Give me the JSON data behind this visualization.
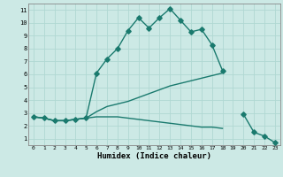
{
  "xlabel": "Humidex (Indice chaleur)",
  "xlim": [
    -0.5,
    23.5
  ],
  "ylim": [
    0.5,
    11.5
  ],
  "xticks": [
    0,
    1,
    2,
    3,
    4,
    5,
    6,
    7,
    8,
    9,
    10,
    11,
    12,
    13,
    14,
    15,
    16,
    17,
    18,
    19,
    20,
    21,
    22,
    23
  ],
  "yticks": [
    1,
    2,
    3,
    4,
    5,
    6,
    7,
    8,
    9,
    10,
    11
  ],
  "bg_color": "#cce9e5",
  "line_color": "#1a7a6e",
  "grid_color": "#b0d8d2",
  "lines": [
    {
      "x": [
        0,
        1,
        2,
        3,
        4,
        5,
        6,
        7,
        8,
        9,
        10,
        11,
        12,
        13,
        14,
        15,
        16,
        17,
        18,
        19,
        20,
        21,
        22,
        23
      ],
      "y": [
        2.7,
        2.6,
        2.4,
        2.4,
        2.5,
        2.6,
        6.1,
        7.2,
        8.0,
        9.4,
        10.4,
        9.6,
        10.4,
        11.1,
        10.2,
        9.3,
        9.5,
        8.3,
        6.3,
        null,
        2.9,
        1.5,
        1.2,
        0.7
      ],
      "marker": true
    },
    {
      "x": [
        0,
        1,
        2,
        3,
        4,
        5,
        6,
        7,
        8,
        9,
        10,
        11,
        12,
        13,
        14,
        15,
        16,
        17,
        18,
        19,
        20,
        21,
        22,
        23
      ],
      "y": [
        2.7,
        2.6,
        2.4,
        2.4,
        2.5,
        2.6,
        3.1,
        3.5,
        3.7,
        3.9,
        4.2,
        4.5,
        4.8,
        5.1,
        5.3,
        5.5,
        5.7,
        5.9,
        6.1,
        null,
        null,
        null,
        null,
        null
      ],
      "marker": false
    },
    {
      "x": [
        0,
        1,
        2,
        3,
        4,
        5,
        6,
        7,
        8,
        9,
        10,
        11,
        12,
        13,
        14,
        15,
        16,
        17,
        18,
        19,
        20,
        21,
        22,
        23
      ],
      "y": [
        2.7,
        2.6,
        2.4,
        2.4,
        2.5,
        2.6,
        2.7,
        2.7,
        2.7,
        2.6,
        2.5,
        2.4,
        2.3,
        2.2,
        2.1,
        2.0,
        1.9,
        1.9,
        1.8,
        null,
        null,
        null,
        null,
        null
      ],
      "marker": false
    }
  ]
}
